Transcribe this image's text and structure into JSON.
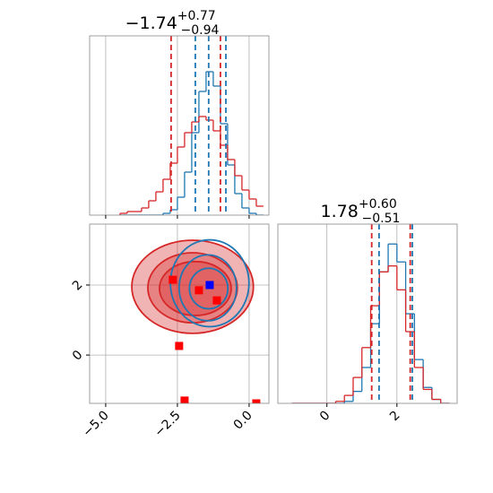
{
  "chart_data": [
    {
      "type": "histogram",
      "title": {
        "main": "−1.74",
        "upper": "+0.77",
        "lower": "−0.94"
      },
      "bins": [
        -4.5,
        -4.25,
        -4.0,
        -3.75,
        -3.5,
        -3.25,
        -3.0,
        -2.75,
        -2.5,
        -2.25,
        -2.0,
        -1.75,
        -1.5,
        -1.25,
        -1.0,
        -0.75,
        -0.5,
        -0.25,
        0.0,
        0.25,
        0.5
      ],
      "series": [
        {
          "color": "#1f77b4",
          "values": [
            0,
            0,
            0,
            0,
            0,
            0,
            1,
            3,
            10,
            24,
            46,
            69,
            80,
            72,
            51,
            28,
            12,
            4,
            1,
            0
          ]
        },
        {
          "color": "#d62728",
          "values": [
            1,
            2,
            2,
            4,
            8,
            13,
            20,
            29,
            38,
            46,
            52,
            55,
            53,
            47,
            39,
            31,
            22,
            14,
            9,
            5
          ]
        }
      ],
      "vlines": [
        {
          "color": "#1f77b4",
          "values": [
            -1.875,
            -1.41,
            -0.81
          ]
        },
        {
          "color": "#d62728",
          "values": [
            -2.72,
            -1.0
          ]
        }
      ],
      "xlim": [
        -5.56,
        0.69
      ],
      "xticks": [
        -5,
        -2.5,
        0
      ],
      "ylim": [
        0,
        100
      ],
      "grid": true
    },
    {
      "type": "contour",
      "contours": [
        {
          "color": "#d62728",
          "filled": true,
          "levels": [
            {
              "cx": -1.97,
              "cy": 1.95,
              "rx": 2.12,
              "ry": 1.33
            },
            {
              "cx": -1.97,
              "cy": 1.92,
              "rx": 1.56,
              "ry": 1.0
            },
            {
              "cx": -1.875,
              "cy": 1.9,
              "rx": 1.25,
              "ry": 0.77
            }
          ]
        },
        {
          "color": "#1f77b4",
          "filled": false,
          "levels": [
            {
              "cx": -1.375,
              "cy": 2.05,
              "rx": 1.37,
              "ry": 1.24
            },
            {
              "cx": -1.44,
              "cy": 1.92,
              "rx": 1.0,
              "ry": 0.94
            },
            {
              "cx": -1.41,
              "cy": 1.9,
              "rx": 0.67,
              "ry": 0.58
            }
          ]
        }
      ],
      "series": [
        {
          "color": "#ff0000",
          "x": [
            -2.44,
            -1.75,
            -1.125,
            -2.66,
            -2.25,
            0.25
          ],
          "values": [
            0.26,
            1.85,
            1.56,
            2.15,
            -1.3,
            -1.38
          ]
        },
        {
          "color": "#0000ff",
          "x": [
            -1.375
          ],
          "values": [
            2.0
          ]
        }
      ],
      "xlim": [
        -5.56,
        0.69
      ],
      "xticks": [
        {
          "value": -5,
          "label": "−5.0"
        },
        {
          "value": -2.5,
          "label": "−2.5"
        },
        {
          "value": 0,
          "label": "0.0"
        }
      ],
      "ylim": [
        -1.38,
        3.74
      ],
      "yticks": [
        0,
        2
      ],
      "grid": true
    },
    {
      "type": "histogram",
      "title": {
        "main": "1.78",
        "upper": "+0.60",
        "lower": "−0.51"
      },
      "bins": [
        -1.0,
        -0.75,
        -0.5,
        -0.25,
        0.0,
        0.25,
        0.5,
        0.75,
        1.0,
        1.25,
        1.5,
        1.75,
        2.0,
        2.25,
        2.5,
        2.75,
        3.0,
        3.25,
        3.5
      ],
      "series": [
        {
          "color": "#1f77b4",
          "values": [
            0,
            0,
            0,
            0,
            0,
            0,
            1,
            6,
            18,
            40,
            66,
            80,
            71,
            45,
            22,
            8,
            2,
            0
          ]
        },
        {
          "color": "#d62728",
          "values": [
            0,
            0,
            0,
            0,
            0,
            1,
            4,
            13,
            28,
            49,
            66,
            69,
            57,
            36,
            18,
            7,
            2,
            0
          ]
        }
      ],
      "vlines": [
        {
          "color": "#1f77b4",
          "values": [
            1.49,
            2.44
          ]
        },
        {
          "color": "#d62728",
          "values": [
            1.28,
            2.38
          ]
        }
      ],
      "xlim": [
        -1.4,
        3.72
      ],
      "xticks": [
        0,
        2
      ],
      "ylim": [
        0,
        90
      ],
      "grid": true
    }
  ]
}
